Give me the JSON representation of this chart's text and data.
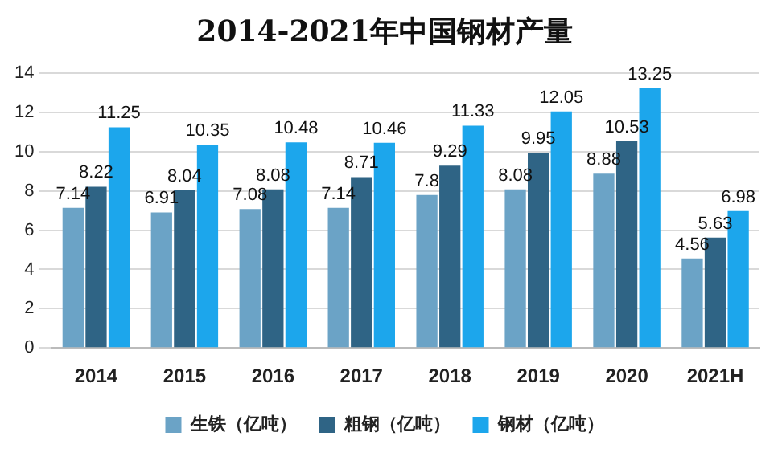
{
  "chart_data": {
    "type": "bar",
    "title": "2014-2021年中国钢材产量",
    "categories": [
      "2014",
      "2015",
      "2016",
      "2017",
      "2018",
      "2019",
      "2020",
      "2021H"
    ],
    "series": [
      {
        "name": "生铁（亿吨）",
        "color": "#6ba3c6",
        "values": [
          7.14,
          6.91,
          7.08,
          7.14,
          7.8,
          8.08,
          8.88,
          4.56
        ]
      },
      {
        "name": "粗钢（亿吨）",
        "color": "#2f6485",
        "values": [
          8.22,
          8.04,
          8.08,
          8.71,
          9.29,
          9.95,
          10.53,
          5.63
        ]
      },
      {
        "name": "钢材（亿吨）",
        "color": "#1ca6ec",
        "values": [
          11.25,
          10.35,
          10.48,
          10.46,
          11.33,
          12.05,
          13.25,
          6.98
        ]
      }
    ],
    "ylim": [
      0,
      14
    ],
    "yticks": [
      0,
      2,
      4,
      6,
      8,
      10,
      12,
      14
    ],
    "grid": "y",
    "legend": "bottom",
    "data_labels": true
  }
}
